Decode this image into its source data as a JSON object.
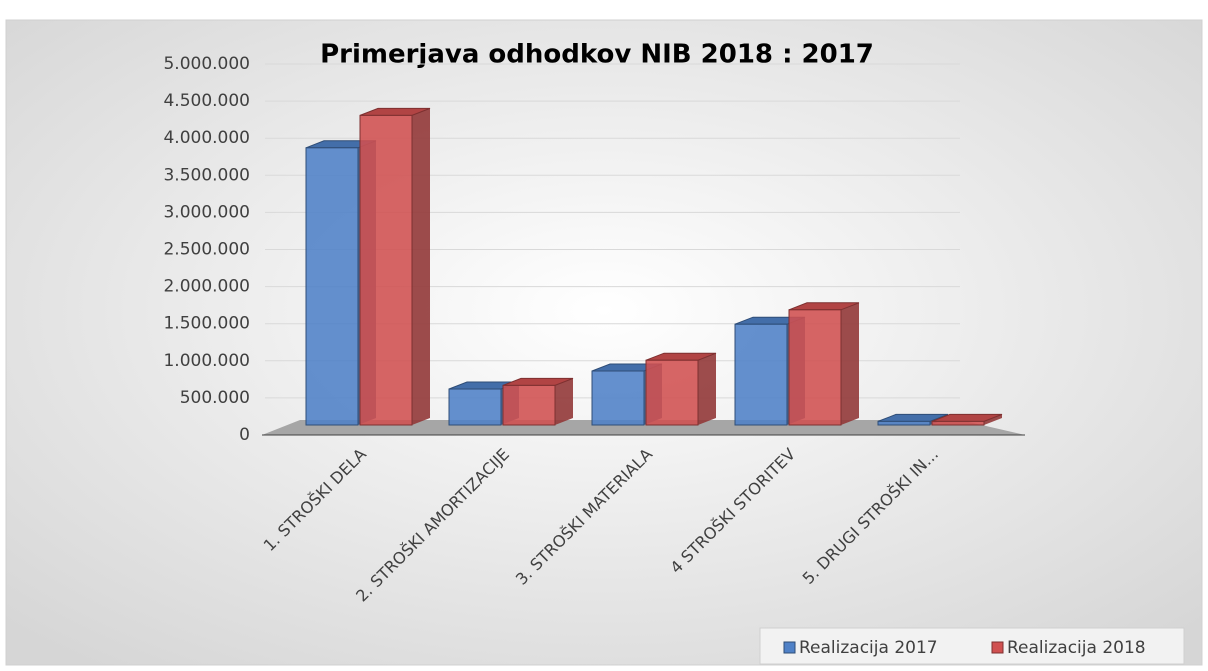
{
  "chart_data": {
    "type": "bar3d",
    "title": "Primerjava odhodkov NIB 2018 : 2017",
    "categories": [
      "1. STROŠKI DELA",
      "2. STROŠKI AMORTIZACIJE",
      "3. STROŠKI MATERIALA",
      "4 STROŠKI STORITEV",
      "5. DRUGI STROŠKI IN..."
    ],
    "series": [
      {
        "name": "Realizacija 2017",
        "color": "#4f81c7",
        "values": [
          3850000,
          500000,
          750000,
          1400000,
          50000
        ]
      },
      {
        "name": "Realizacija 2018",
        "color": "#d05050",
        "values": [
          4300000,
          550000,
          900000,
          1600000,
          50000
        ]
      }
    ],
    "ylim": [
      0,
      5000000
    ],
    "yticks": [
      0,
      {
        "value": 500000,
        "label": "500.000"
      },
      {
        "value": 1000000,
        "label": "1.000.000"
      },
      {
        "value": 1500000,
        "label": "1.500.000"
      },
      {
        "value": 2000000,
        "label": "2.000.000"
      },
      {
        "value": 2500000,
        "label": "2.500.000"
      },
      {
        "value": 3000000,
        "label": "3.000.000"
      },
      {
        "value": 3500000,
        "label": "3.500.000"
      },
      {
        "value": 4000000,
        "label": "4.000.000"
      },
      {
        "value": 4500000,
        "label": "4.500.000"
      },
      {
        "value": 5000000,
        "label": "5.000.000"
      }
    ],
    "grid": true,
    "legend": "bottom-right"
  }
}
